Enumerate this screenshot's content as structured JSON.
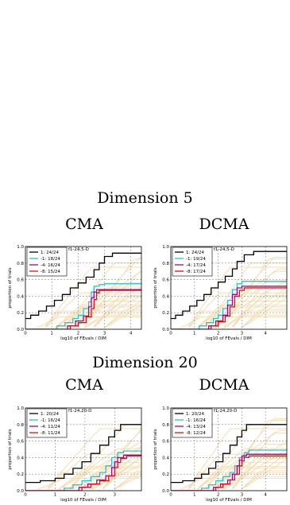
{
  "headings": {
    "dim5": "Dimension 5",
    "dim20": "Dimension 20"
  },
  "column_titles": {
    "left": "CMA",
    "right": "DCMA"
  },
  "colors": {
    "black": "#000000",
    "cyan": "#20c8c8",
    "purple": "#a000a0",
    "red": "#ff0000",
    "background_lines": "#f6dcb0",
    "grid": "#888888"
  },
  "chart_data": [
    {
      "type": "line",
      "title": "f1-24,5-D",
      "xlabel": "log10 of FEvals / DIM",
      "ylabel": "proportion of trials",
      "xlim": [
        0,
        4.4
      ],
      "ylim": [
        0,
        1.0
      ],
      "xticks": [
        "0",
        "1",
        "2",
        "3",
        "4"
      ],
      "yticks": [
        "0.0",
        "0.2",
        "0.4",
        "0.6",
        "0.8",
        "1.0"
      ],
      "grid": true,
      "legend_position": "top-left",
      "series": [
        {
          "name": "1: 24/24",
          "color": "#000000",
          "x": [
            0,
            0.2,
            0.5,
            0.8,
            1.1,
            1.4,
            1.7,
            2.0,
            2.3,
            2.6,
            2.8,
            3.0,
            3.3,
            3.6,
            4.4
          ],
          "y": [
            0.13,
            0.17,
            0.22,
            0.28,
            0.35,
            0.42,
            0.5,
            0.56,
            0.63,
            0.72,
            0.8,
            0.88,
            0.92,
            0.92,
            0.92
          ]
        },
        {
          "name": "-1: 18/24",
          "color": "#20c8c8",
          "x": [
            0,
            1.0,
            1.2,
            1.5,
            1.8,
            2.0,
            2.2,
            2.4,
            2.5,
            2.6,
            2.8,
            3.0,
            4.4
          ],
          "y": [
            0.0,
            0.0,
            0.04,
            0.08,
            0.13,
            0.17,
            0.25,
            0.33,
            0.45,
            0.52,
            0.54,
            0.55,
            0.55
          ]
        },
        {
          "name": "-4: 16/24",
          "color": "#a000a0",
          "x": [
            0,
            1.4,
            1.6,
            1.9,
            2.2,
            2.4,
            2.5,
            2.6,
            2.7,
            2.9,
            4.4
          ],
          "y": [
            0.0,
            0.0,
            0.04,
            0.1,
            0.16,
            0.27,
            0.38,
            0.45,
            0.48,
            0.48,
            0.48
          ]
        },
        {
          "name": "-8: 15/24",
          "color": "#ff0000",
          "x": [
            0,
            1.5,
            1.7,
            2.0,
            2.3,
            2.5,
            2.6,
            2.7,
            2.8,
            3.0,
            4.4
          ],
          "y": [
            0.0,
            0.0,
            0.04,
            0.08,
            0.15,
            0.25,
            0.36,
            0.44,
            0.47,
            0.47,
            0.47
          ]
        }
      ]
    },
    {
      "type": "line",
      "title": "f1-24,5-D",
      "xlabel": "log10 of FEvals / DIM",
      "ylabel": "proportion of trials",
      "xlim": [
        0,
        4.9
      ],
      "ylim": [
        0,
        1.0
      ],
      "xticks": [
        "0",
        "1",
        "2",
        "3",
        "4"
      ],
      "yticks": [
        "0.0",
        "0.2",
        "0.4",
        "0.6",
        "0.8",
        "1.0"
      ],
      "grid": true,
      "legend_position": "top-left",
      "series": [
        {
          "name": "1: 24/24",
          "color": "#000000",
          "x": [
            0,
            0.2,
            0.5,
            0.8,
            1.1,
            1.4,
            1.7,
            2.0,
            2.3,
            2.6,
            2.8,
            3.1,
            3.5,
            4.9
          ],
          "y": [
            0.13,
            0.17,
            0.22,
            0.28,
            0.35,
            0.42,
            0.5,
            0.57,
            0.64,
            0.73,
            0.82,
            0.9,
            0.94,
            0.94
          ]
        },
        {
          "name": "-1: 19/24",
          "color": "#20c8c8",
          "x": [
            0,
            1.0,
            1.2,
            1.5,
            1.8,
            2.0,
            2.2,
            2.4,
            2.6,
            2.8,
            3.0,
            3.4,
            4.9
          ],
          "y": [
            0.0,
            0.0,
            0.04,
            0.08,
            0.13,
            0.17,
            0.25,
            0.35,
            0.48,
            0.55,
            0.58,
            0.58,
            0.58
          ]
        },
        {
          "name": "-4: 17/24",
          "color": "#a000a0",
          "x": [
            0,
            1.4,
            1.6,
            1.9,
            2.2,
            2.4,
            2.6,
            2.8,
            3.0,
            4.9
          ],
          "y": [
            0.0,
            0.0,
            0.04,
            0.1,
            0.17,
            0.29,
            0.42,
            0.5,
            0.52,
            0.52
          ]
        },
        {
          "name": "-8: 17/24",
          "color": "#ff0000",
          "x": [
            0,
            1.5,
            1.7,
            2.0,
            2.3,
            2.5,
            2.7,
            2.9,
            3.1,
            4.9
          ],
          "y": [
            0.0,
            0.0,
            0.04,
            0.09,
            0.16,
            0.27,
            0.4,
            0.47,
            0.5,
            0.5
          ]
        }
      ]
    },
    {
      "type": "line",
      "title": "f1-24,20-D",
      "xlabel": "log10 of FEvals / DIM",
      "ylabel": "proportion of trials",
      "xlim": [
        0,
        3.9
      ],
      "ylim": [
        0,
        1.0
      ],
      "xticks": [
        "0",
        "1",
        "2",
        "3"
      ],
      "yticks": [
        "0.0",
        "0.2",
        "0.4",
        "0.6",
        "0.8",
        "1.0"
      ],
      "grid": true,
      "legend_position": "top-left",
      "series": [
        {
          "name": "1: 20/24",
          "color": "#000000",
          "x": [
            0,
            0.5,
            1.0,
            1.3,
            1.6,
            1.9,
            2.2,
            2.5,
            2.8,
            3.0,
            3.2,
            3.9
          ],
          "y": [
            0.1,
            0.12,
            0.15,
            0.2,
            0.27,
            0.35,
            0.45,
            0.55,
            0.65,
            0.73,
            0.8,
            0.8
          ]
        },
        {
          "name": "-1: 16/24",
          "color": "#20c8c8",
          "x": [
            0,
            1.0,
            1.3,
            1.6,
            1.9,
            2.2,
            2.5,
            2.7,
            2.9,
            3.1,
            3.3,
            3.9
          ],
          "y": [
            0.0,
            0.0,
            0.03,
            0.07,
            0.12,
            0.17,
            0.22,
            0.3,
            0.4,
            0.46,
            0.48,
            0.48
          ]
        },
        {
          "name": "-4: 11/24",
          "color": "#a000a0",
          "x": [
            0,
            1.5,
            1.8,
            2.1,
            2.4,
            2.7,
            2.9,
            3.0,
            3.1,
            3.3,
            3.9
          ],
          "y": [
            0.0,
            0.0,
            0.04,
            0.08,
            0.13,
            0.18,
            0.28,
            0.35,
            0.4,
            0.43,
            0.43
          ]
        },
        {
          "name": "-8: 11/24",
          "color": "#ff0000",
          "x": [
            0,
            1.6,
            1.9,
            2.2,
            2.5,
            2.8,
            3.0,
            3.1,
            3.2,
            3.4,
            3.9
          ],
          "y": [
            0.0,
            0.0,
            0.04,
            0.08,
            0.12,
            0.18,
            0.28,
            0.34,
            0.39,
            0.42,
            0.42
          ]
        }
      ]
    },
    {
      "type": "line",
      "title": "f1-24,20-D",
      "xlabel": "log10 of FEvals / DIM",
      "ylabel": "proportion of trials",
      "xlim": [
        0,
        4.9
      ],
      "ylim": [
        0,
        1.0
      ],
      "xticks": [
        "0",
        "1",
        "2",
        "3",
        "4"
      ],
      "yticks": [
        "0.0",
        "0.2",
        "0.4",
        "0.6",
        "0.8",
        "1.0"
      ],
      "grid": true,
      "legend_position": "top-left",
      "series": [
        {
          "name": "1: 20/24",
          "color": "#000000",
          "x": [
            0,
            0.5,
            1.0,
            1.3,
            1.6,
            1.9,
            2.2,
            2.5,
            2.8,
            3.0,
            3.2,
            4.9
          ],
          "y": [
            0.1,
            0.12,
            0.15,
            0.2,
            0.27,
            0.35,
            0.45,
            0.55,
            0.65,
            0.73,
            0.8,
            0.8
          ]
        },
        {
          "name": "-1: 16/24",
          "color": "#20c8c8",
          "x": [
            0,
            1.0,
            1.3,
            1.6,
            1.9,
            2.2,
            2.5,
            2.7,
            2.9,
            3.1,
            3.3,
            4.9
          ],
          "y": [
            0.0,
            0.0,
            0.03,
            0.07,
            0.12,
            0.17,
            0.22,
            0.3,
            0.4,
            0.46,
            0.49,
            0.49
          ]
        },
        {
          "name": "-4: 13/24",
          "color": "#a000a0",
          "x": [
            0,
            1.5,
            1.8,
            2.1,
            2.4,
            2.6,
            2.8,
            2.9,
            3.0,
            3.2,
            4.9
          ],
          "y": [
            0.0,
            0.0,
            0.04,
            0.08,
            0.13,
            0.2,
            0.3,
            0.37,
            0.42,
            0.44,
            0.44
          ]
        },
        {
          "name": "-8: 12/24",
          "color": "#ff0000",
          "x": [
            0,
            1.6,
            1.9,
            2.2,
            2.5,
            2.7,
            2.9,
            3.0,
            3.1,
            3.3,
            4.9
          ],
          "y": [
            0.0,
            0.0,
            0.04,
            0.08,
            0.13,
            0.2,
            0.3,
            0.36,
            0.4,
            0.42,
            0.42
          ]
        }
      ]
    }
  ]
}
